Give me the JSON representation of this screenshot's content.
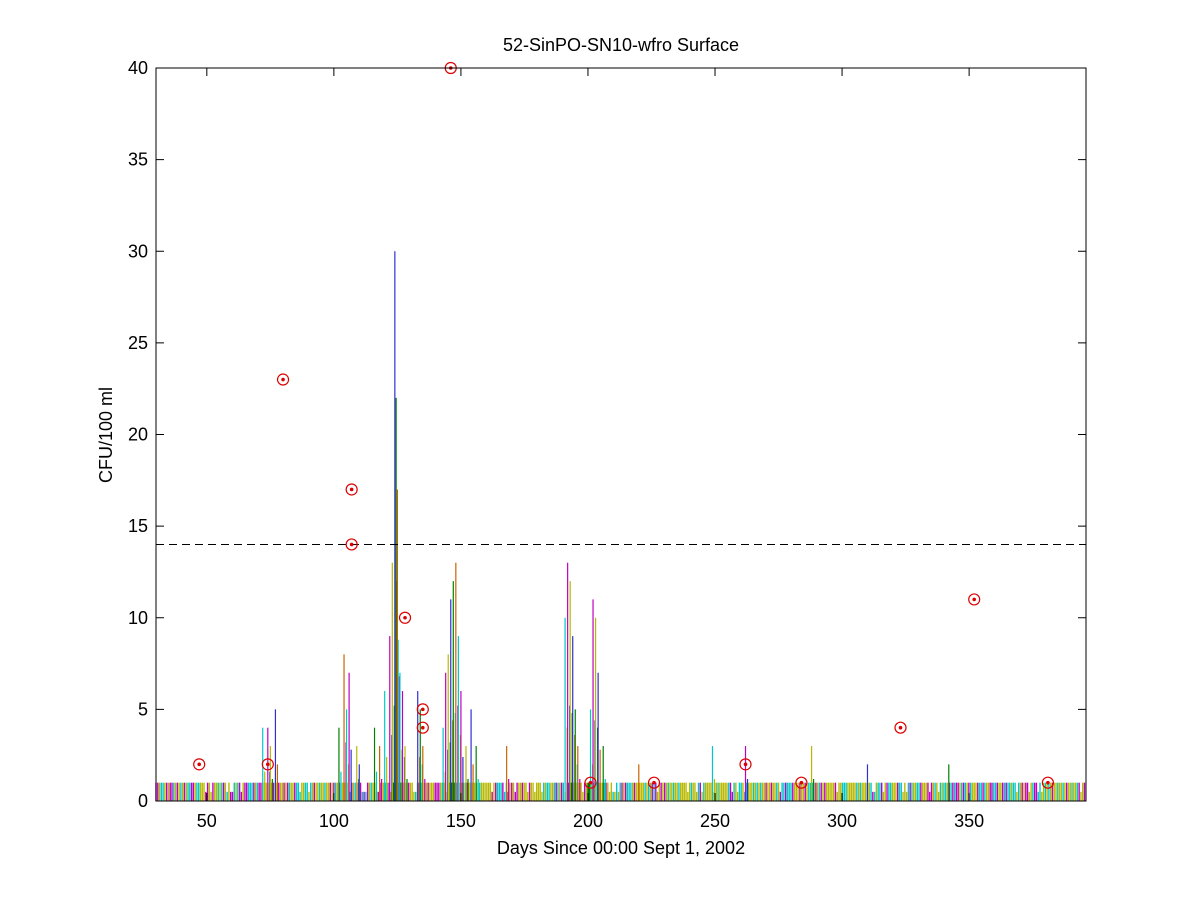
{
  "chart_data": {
    "type": "scatter",
    "title": "52-SinPO-SN10-wfro Surface",
    "xlabel": "Days Since 00:00 Sept 1, 2002",
    "ylabel": "CFU/100 ml",
    "xlim": [
      30,
      396
    ],
    "ylim": [
      0,
      40
    ],
    "xticks": [
      50,
      100,
      150,
      200,
      250,
      300,
      350
    ],
    "yticks": [
      0,
      5,
      10,
      15,
      20,
      25,
      30,
      35,
      40
    ],
    "grid": false,
    "threshold": {
      "y": 14,
      "style": "dashed",
      "color": "#000000"
    },
    "observed_samples": {
      "marker": "circled-dot",
      "color": "#dd0000",
      "points": [
        {
          "x": 47,
          "y": 2
        },
        {
          "x": 74,
          "y": 2
        },
        {
          "x": 80,
          "y": 23
        },
        {
          "x": 107,
          "y": 17
        },
        {
          "x": 107,
          "y": 14
        },
        {
          "x": 128,
          "y": 10
        },
        {
          "x": 135,
          "y": 5
        },
        {
          "x": 135,
          "y": 4
        },
        {
          "x": 146,
          "y": 40
        },
        {
          "x": 201,
          "y": 1
        },
        {
          "x": 226,
          "y": 1
        },
        {
          "x": 262,
          "y": 2
        },
        {
          "x": 284,
          "y": 1
        },
        {
          "x": 323,
          "y": 4
        },
        {
          "x": 352,
          "y": 11
        },
        {
          "x": 381,
          "y": 1
        }
      ]
    },
    "model_prediction_colors": [
      "#00c8c8",
      "#c000c0",
      "#b8b800",
      "#3030d0",
      "#008000",
      "#c86400"
    ],
    "model_prediction_spikes": [
      {
        "x": 72,
        "y": 4
      },
      {
        "x": 74,
        "y": 4
      },
      {
        "x": 75,
        "y": 3
      },
      {
        "x": 77,
        "y": 5
      },
      {
        "x": 102,
        "y": 4
      },
      {
        "x": 104,
        "y": 8
      },
      {
        "x": 105,
        "y": 5
      },
      {
        "x": 106,
        "y": 7
      },
      {
        "x": 109,
        "y": 3
      },
      {
        "x": 110,
        "y": 2
      },
      {
        "x": 116,
        "y": 4
      },
      {
        "x": 118,
        "y": 3
      },
      {
        "x": 120,
        "y": 6
      },
      {
        "x": 122,
        "y": 9
      },
      {
        "x": 123,
        "y": 13
      },
      {
        "x": 124,
        "y": 30
      },
      {
        "x": 124.5,
        "y": 22
      },
      {
        "x": 125,
        "y": 17
      },
      {
        "x": 126,
        "y": 7
      },
      {
        "x": 127,
        "y": 6
      },
      {
        "x": 128,
        "y": 3
      },
      {
        "x": 133,
        "y": 6
      },
      {
        "x": 134,
        "y": 5
      },
      {
        "x": 135,
        "y": 3
      },
      {
        "x": 143,
        "y": 4
      },
      {
        "x": 144,
        "y": 7
      },
      {
        "x": 145,
        "y": 8
      },
      {
        "x": 146,
        "y": 11
      },
      {
        "x": 147,
        "y": 12
      },
      {
        "x": 148,
        "y": 13
      },
      {
        "x": 149,
        "y": 9
      },
      {
        "x": 150,
        "y": 6
      },
      {
        "x": 152,
        "y": 3
      },
      {
        "x": 154,
        "y": 5
      },
      {
        "x": 156,
        "y": 3
      },
      {
        "x": 168,
        "y": 3
      },
      {
        "x": 191,
        "y": 10
      },
      {
        "x": 192,
        "y": 13
      },
      {
        "x": 193,
        "y": 12
      },
      {
        "x": 194,
        "y": 9
      },
      {
        "x": 195,
        "y": 5
      },
      {
        "x": 196,
        "y": 3
      },
      {
        "x": 201,
        "y": 5
      },
      {
        "x": 202,
        "y": 11
      },
      {
        "x": 203,
        "y": 10
      },
      {
        "x": 204,
        "y": 7
      },
      {
        "x": 206,
        "y": 3
      },
      {
        "x": 220,
        "y": 2
      },
      {
        "x": 249,
        "y": 3
      },
      {
        "x": 262,
        "y": 3
      },
      {
        "x": 288,
        "y": 3
      },
      {
        "x": 310,
        "y": 2
      },
      {
        "x": 342,
        "y": 2
      }
    ]
  }
}
